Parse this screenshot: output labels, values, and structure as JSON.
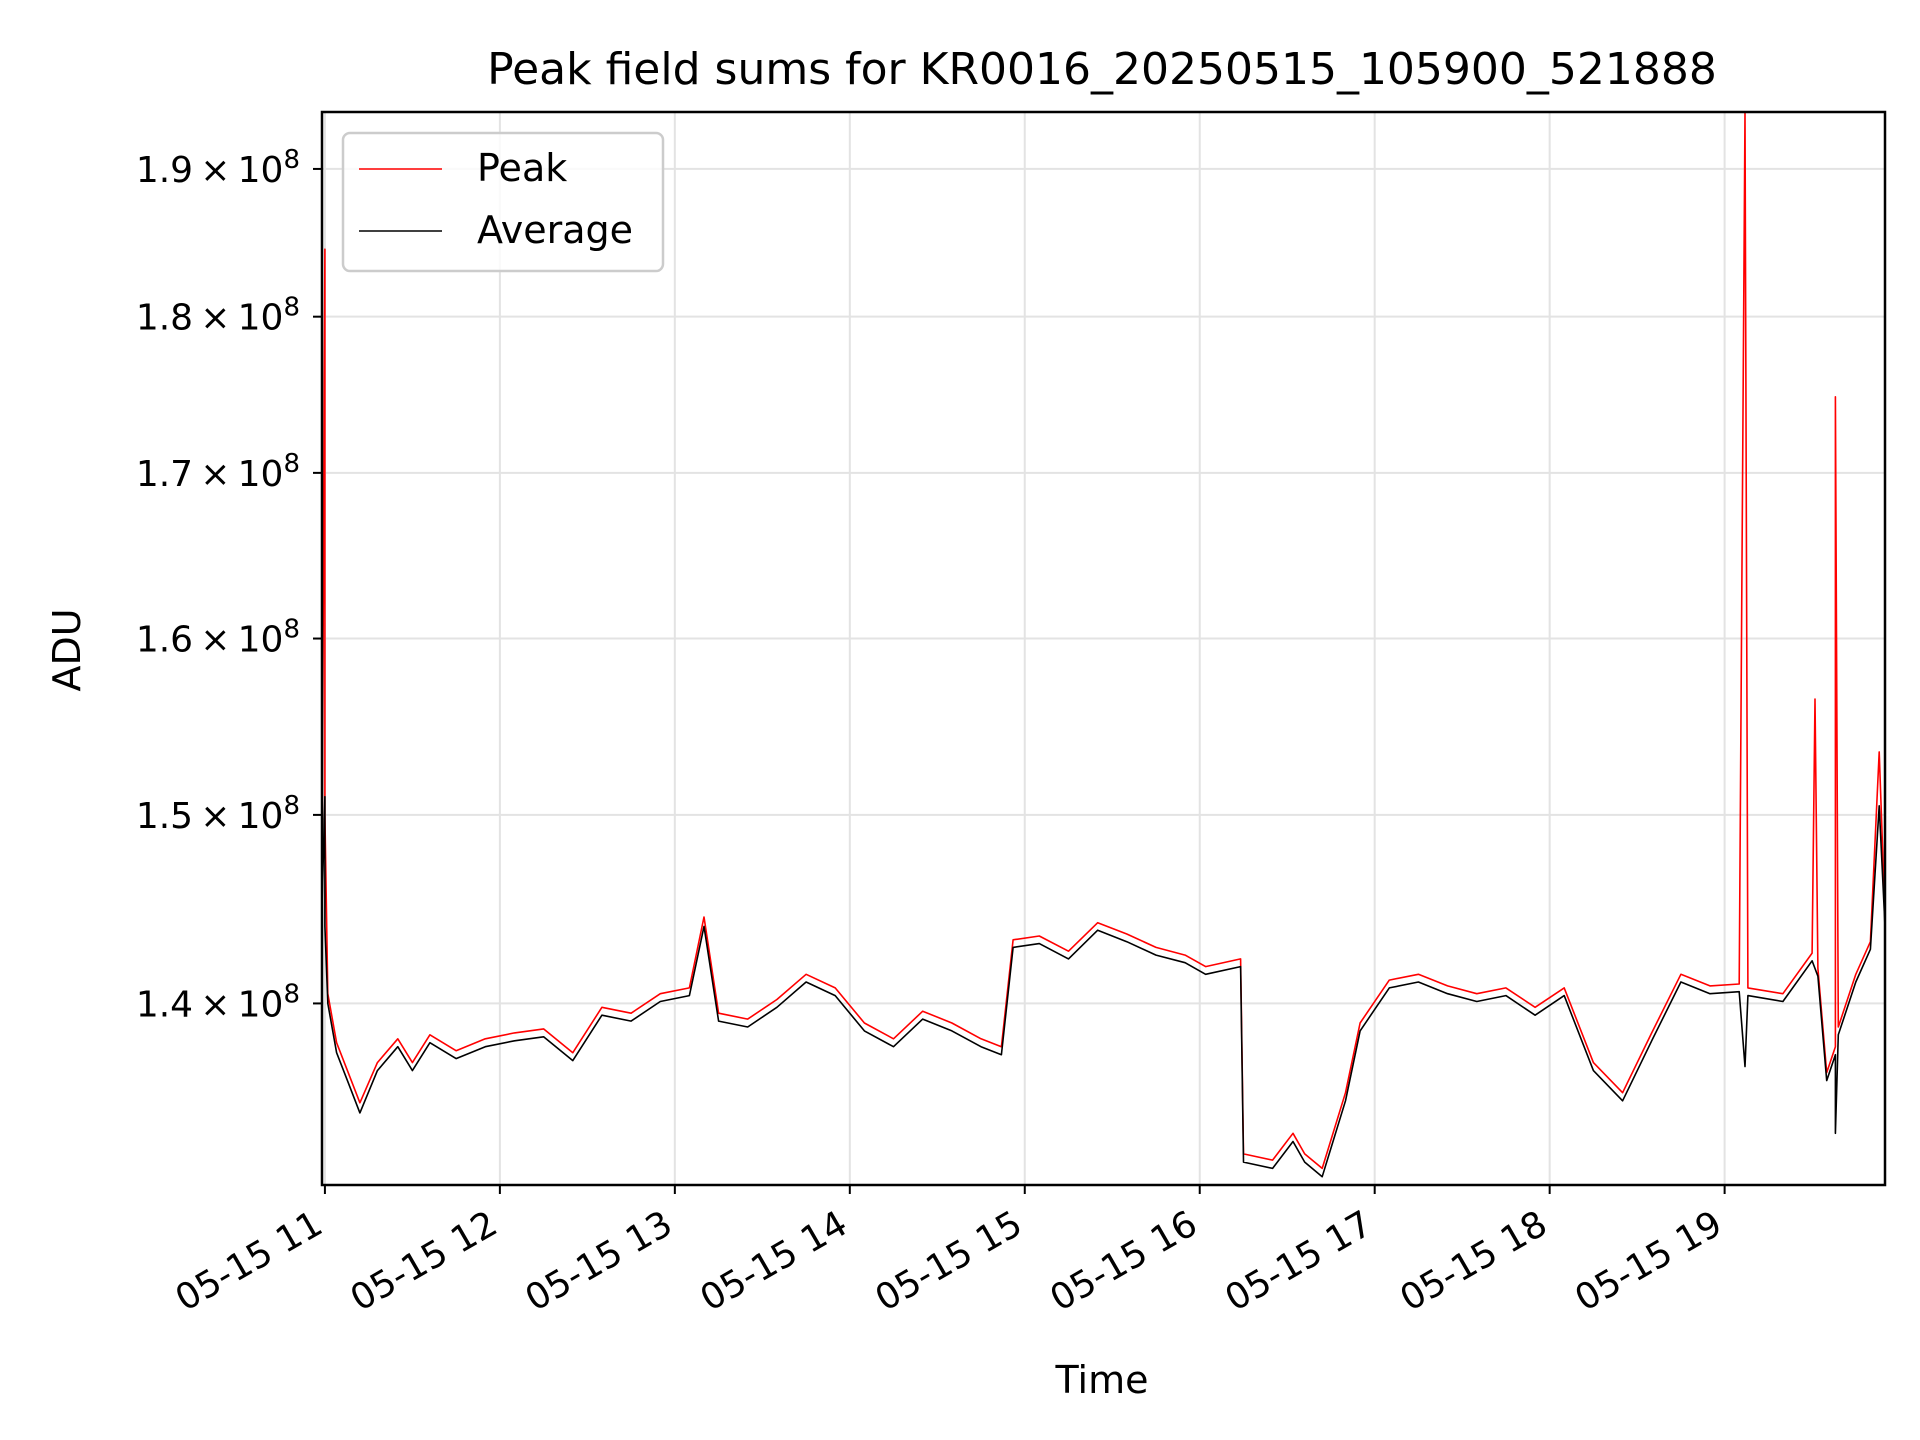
{
  "chart_data": {
    "type": "line",
    "title": "Peak field sums for KR0016_20250515_105900_521888",
    "xlabel": "Time",
    "ylabel": "ADU",
    "yscale": "log",
    "xlim": [
      "2025-05-15 10:59",
      "2025-05-15 19:55"
    ],
    "ylim": [
      131000000,
      194000000
    ],
    "grid": true,
    "legend_position": "upper-left",
    "x_ticks": [
      {
        "label": "05-15 11",
        "time": "2025-05-15 11:00"
      },
      {
        "label": "05-15 12",
        "time": "2025-05-15 12:00"
      },
      {
        "label": "05-15 13",
        "time": "2025-05-15 13:00"
      },
      {
        "label": "05-15 14",
        "time": "2025-05-15 14:00"
      },
      {
        "label": "05-15 15",
        "time": "2025-05-15 15:00"
      },
      {
        "label": "05-15 16",
        "time": "2025-05-15 16:00"
      },
      {
        "label": "05-15 17",
        "time": "2025-05-15 17:00"
      },
      {
        "label": "05-15 18",
        "time": "2025-05-15 18:00"
      },
      {
        "label": "05-15 19",
        "time": "2025-05-15 19:00"
      }
    ],
    "y_ticks": [
      {
        "value": 140000000,
        "mantissa": "1.4",
        "times": "×",
        "base": "10",
        "exp": "8"
      },
      {
        "value": 150000000,
        "mantissa": "1.5",
        "times": "×",
        "base": "10",
        "exp": "8"
      },
      {
        "value": 160000000,
        "mantissa": "1.6",
        "times": "×",
        "base": "10",
        "exp": "8"
      },
      {
        "value": 170000000,
        "mantissa": "1.7",
        "times": "×",
        "base": "10",
        "exp": "8"
      },
      {
        "value": 180000000,
        "mantissa": "1.8",
        "times": "×",
        "base": "10",
        "exp": "8"
      },
      {
        "value": 190000000,
        "mantissa": "1.9",
        "times": "×",
        "base": "10",
        "exp": "8"
      }
    ],
    "series": [
      {
        "name": "Peak",
        "color": "#ff0000",
        "points": [
          [
            "2025-05-15 10:59",
            146000000
          ],
          [
            "2025-05-15 11:00",
            184500000
          ],
          [
            "2025-05-15 11:00",
            150000000
          ],
          [
            "2025-05-15 11:01",
            140500000
          ],
          [
            "2025-05-15 11:04",
            138000000
          ],
          [
            "2025-05-15 11:08",
            136500000
          ],
          [
            "2025-05-15 11:12",
            135000000
          ],
          [
            "2025-05-15 11:18",
            137000000
          ],
          [
            "2025-05-15 11:25",
            138200000
          ],
          [
            "2025-05-15 11:30",
            137000000
          ],
          [
            "2025-05-15 11:36",
            138400000
          ],
          [
            "2025-05-15 11:45",
            137600000
          ],
          [
            "2025-05-15 11:55",
            138200000
          ],
          [
            "2025-05-15 12:05",
            138500000
          ],
          [
            "2025-05-15 12:15",
            138700000
          ],
          [
            "2025-05-15 12:25",
            137500000
          ],
          [
            "2025-05-15 12:35",
            139800000
          ],
          [
            "2025-05-15 12:45",
            139500000
          ],
          [
            "2025-05-15 12:55",
            140500000
          ],
          [
            "2025-05-15 13:05",
            140800000
          ],
          [
            "2025-05-15 13:10",
            144500000
          ],
          [
            "2025-05-15 13:15",
            139500000
          ],
          [
            "2025-05-15 13:25",
            139200000
          ],
          [
            "2025-05-15 13:35",
            140200000
          ],
          [
            "2025-05-15 13:45",
            141500000
          ],
          [
            "2025-05-15 13:55",
            140800000
          ],
          [
            "2025-05-15 14:05",
            139000000
          ],
          [
            "2025-05-15 14:15",
            138200000
          ],
          [
            "2025-05-15 14:25",
            139600000
          ],
          [
            "2025-05-15 14:35",
            139000000
          ],
          [
            "2025-05-15 14:45",
            138200000
          ],
          [
            "2025-05-15 14:52",
            137800000
          ],
          [
            "2025-05-15 14:56",
            143300000
          ],
          [
            "2025-05-15 15:05",
            143500000
          ],
          [
            "2025-05-15 15:15",
            142700000
          ],
          [
            "2025-05-15 15:25",
            144200000
          ],
          [
            "2025-05-15 15:35",
            143600000
          ],
          [
            "2025-05-15 15:45",
            142900000
          ],
          [
            "2025-05-15 15:55",
            142500000
          ],
          [
            "2025-05-15 16:02",
            141900000
          ],
          [
            "2025-05-15 16:14",
            142300000
          ],
          [
            "2025-05-15 16:15",
            132500000
          ],
          [
            "2025-05-15 16:25",
            132200000
          ],
          [
            "2025-05-15 16:32",
            133500000
          ],
          [
            "2025-05-15 16:36",
            132500000
          ],
          [
            "2025-05-15 16:42",
            131800000
          ],
          [
            "2025-05-15 16:50",
            135500000
          ],
          [
            "2025-05-15 16:55",
            139000000
          ],
          [
            "2025-05-15 17:05",
            141200000
          ],
          [
            "2025-05-15 17:15",
            141500000
          ],
          [
            "2025-05-15 17:25",
            140900000
          ],
          [
            "2025-05-15 17:35",
            140500000
          ],
          [
            "2025-05-15 17:45",
            140800000
          ],
          [
            "2025-05-15 17:55",
            139800000
          ],
          [
            "2025-05-15 18:05",
            140800000
          ],
          [
            "2025-05-15 18:15",
            137000000
          ],
          [
            "2025-05-15 18:25",
            135500000
          ],
          [
            "2025-05-15 18:35",
            138500000
          ],
          [
            "2025-05-15 18:45",
            141500000
          ],
          [
            "2025-05-15 18:55",
            140900000
          ],
          [
            "2025-05-15 19:05",
            141000000
          ],
          [
            "2025-05-15 19:07",
            194000000
          ],
          [
            "2025-05-15 19:08",
            140800000
          ],
          [
            "2025-05-15 19:20",
            140500000
          ],
          [
            "2025-05-15 19:30",
            142600000
          ],
          [
            "2025-05-15 19:31",
            156500000
          ],
          [
            "2025-05-15 19:32",
            141800000
          ],
          [
            "2025-05-15 19:35",
            136500000
          ],
          [
            "2025-05-15 19:38",
            137800000
          ],
          [
            "2025-05-15 19:38",
            174800000
          ],
          [
            "2025-05-15 19:39",
            138800000
          ],
          [
            "2025-05-15 19:45",
            141500000
          ],
          [
            "2025-05-15 19:50",
            143200000
          ],
          [
            "2025-05-15 19:53",
            153500000
          ],
          [
            "2025-05-15 19:55",
            144500000
          ]
        ]
      },
      {
        "name": "Average",
        "color": "#000000",
        "points": [
          [
            "2025-05-15 10:59",
            145000000
          ],
          [
            "2025-05-15 11:00",
            151000000
          ],
          [
            "2025-05-15 11:00",
            144000000
          ],
          [
            "2025-05-15 11:01",
            140000000
          ],
          [
            "2025-05-15 11:04",
            137500000
          ],
          [
            "2025-05-15 11:08",
            136000000
          ],
          [
            "2025-05-15 11:12",
            134500000
          ],
          [
            "2025-05-15 11:18",
            136600000
          ],
          [
            "2025-05-15 11:25",
            137800000
          ],
          [
            "2025-05-15 11:30",
            136600000
          ],
          [
            "2025-05-15 11:36",
            138000000
          ],
          [
            "2025-05-15 11:45",
            137200000
          ],
          [
            "2025-05-15 11:55",
            137800000
          ],
          [
            "2025-05-15 12:05",
            138100000
          ],
          [
            "2025-05-15 12:15",
            138300000
          ],
          [
            "2025-05-15 12:25",
            137100000
          ],
          [
            "2025-05-15 12:35",
            139400000
          ],
          [
            "2025-05-15 12:45",
            139100000
          ],
          [
            "2025-05-15 12:55",
            140100000
          ],
          [
            "2025-05-15 13:05",
            140400000
          ],
          [
            "2025-05-15 13:10",
            144000000
          ],
          [
            "2025-05-15 13:15",
            139100000
          ],
          [
            "2025-05-15 13:25",
            138800000
          ],
          [
            "2025-05-15 13:35",
            139800000
          ],
          [
            "2025-05-15 13:45",
            141100000
          ],
          [
            "2025-05-15 13:55",
            140400000
          ],
          [
            "2025-05-15 14:05",
            138600000
          ],
          [
            "2025-05-15 14:15",
            137800000
          ],
          [
            "2025-05-15 14:25",
            139200000
          ],
          [
            "2025-05-15 14:35",
            138600000
          ],
          [
            "2025-05-15 14:45",
            137800000
          ],
          [
            "2025-05-15 14:52",
            137400000
          ],
          [
            "2025-05-15 14:56",
            142900000
          ],
          [
            "2025-05-15 15:05",
            143100000
          ],
          [
            "2025-05-15 15:15",
            142300000
          ],
          [
            "2025-05-15 15:25",
            143800000
          ],
          [
            "2025-05-15 15:35",
            143200000
          ],
          [
            "2025-05-15 15:45",
            142500000
          ],
          [
            "2025-05-15 15:55",
            142100000
          ],
          [
            "2025-05-15 16:02",
            141500000
          ],
          [
            "2025-05-15 16:14",
            141900000
          ],
          [
            "2025-05-15 16:15",
            132100000
          ],
          [
            "2025-05-15 16:25",
            131800000
          ],
          [
            "2025-05-15 16:32",
            133100000
          ],
          [
            "2025-05-15 16:36",
            132100000
          ],
          [
            "2025-05-15 16:42",
            131400000
          ],
          [
            "2025-05-15 16:50",
            135100000
          ],
          [
            "2025-05-15 16:55",
            138600000
          ],
          [
            "2025-05-15 17:05",
            140800000
          ],
          [
            "2025-05-15 17:15",
            141100000
          ],
          [
            "2025-05-15 17:25",
            140500000
          ],
          [
            "2025-05-15 17:35",
            140100000
          ],
          [
            "2025-05-15 17:45",
            140400000
          ],
          [
            "2025-05-15 17:55",
            139400000
          ],
          [
            "2025-05-15 18:05",
            140400000
          ],
          [
            "2025-05-15 18:15",
            136600000
          ],
          [
            "2025-05-15 18:25",
            135100000
          ],
          [
            "2025-05-15 18:35",
            138100000
          ],
          [
            "2025-05-15 18:45",
            141100000
          ],
          [
            "2025-05-15 18:55",
            140500000
          ],
          [
            "2025-05-15 19:05",
            140600000
          ],
          [
            "2025-05-15 19:07",
            136800000
          ],
          [
            "2025-05-15 19:08",
            140400000
          ],
          [
            "2025-05-15 19:20",
            140100000
          ],
          [
            "2025-05-15 19:30",
            142200000
          ],
          [
            "2025-05-15 19:31",
            141800000
          ],
          [
            "2025-05-15 19:32",
            141400000
          ],
          [
            "2025-05-15 19:35",
            136100000
          ],
          [
            "2025-05-15 19:38",
            137400000
          ],
          [
            "2025-05-15 19:38",
            133500000
          ],
          [
            "2025-05-15 19:39",
            138400000
          ],
          [
            "2025-05-15 19:45",
            141100000
          ],
          [
            "2025-05-15 19:50",
            142800000
          ],
          [
            "2025-05-15 19:53",
            150500000
          ],
          [
            "2025-05-15 19:55",
            144000000
          ]
        ]
      }
    ]
  }
}
